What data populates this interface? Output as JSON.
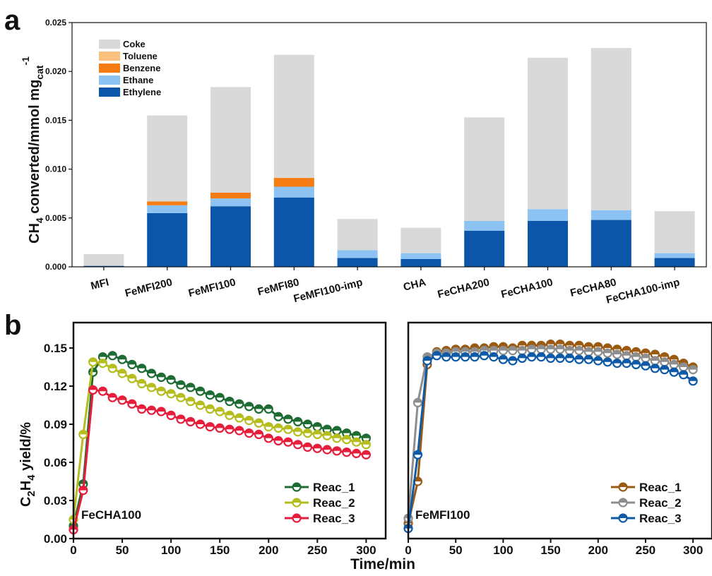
{
  "panels": {
    "a": "a",
    "b": "b"
  },
  "chart_data": [
    {
      "type": "bar",
      "stacked": true,
      "categories": [
        "MFI",
        "FeMFI200",
        "FeMFI100",
        "FeMFI80",
        "FeMFI100-imp",
        "CHA",
        "FeCHA200",
        "FeCHA100",
        "FeCHA80",
        "FeCHA100-imp"
      ],
      "ylabel_main": "CH",
      "ylabel_sub": "4",
      "ylabel_rest": " converted/mmol mg",
      "ylabel_unit_sub": "cat",
      "ylabel_unit_sup": "-1",
      "ylim": [
        0,
        0.025
      ],
      "yticks": [
        "0.000",
        "0.005",
        "0.010",
        "0.015",
        "0.020",
        "0.025"
      ],
      "ytick_values": [
        0,
        0.005,
        0.01,
        0.015,
        0.02,
        0.025
      ],
      "legend_position": "top-left",
      "series": [
        {
          "name": "Ethylene",
          "color": "#0b56a8",
          "values": [
            0.0001,
            0.0055,
            0.0062,
            0.0071,
            0.0009,
            0.0008,
            0.0037,
            0.0047,
            0.0048,
            0.0009
          ]
        },
        {
          "name": "Ethane",
          "color": "#8cc3f2",
          "values": [
            0.0,
            0.0008,
            0.0008,
            0.0011,
            0.0008,
            0.0006,
            0.001,
            0.0012,
            0.001,
            0.0005
          ]
        },
        {
          "name": "Benzene",
          "color": "#f47c12",
          "values": [
            0.0,
            0.0004,
            0.0006,
            0.0009,
            0.0,
            0.0,
            0.0,
            0.0,
            0.0,
            0.0
          ]
        },
        {
          "name": "Toluene",
          "color": "#f9c07e",
          "values": [
            0.0,
            0.0,
            0.0,
            0.0,
            0.0,
            0.0,
            0.0,
            0.0,
            0.0,
            0.0
          ]
        },
        {
          "name": "Coke",
          "color": "#d9d9d9",
          "values": [
            0.0012,
            0.0088,
            0.0108,
            0.0126,
            0.0032,
            0.0026,
            0.0106,
            0.0155,
            0.0166,
            0.0043
          ]
        }
      ]
    },
    {
      "type": "line",
      "title": "FeCHA100",
      "ylabel_main": "C",
      "ylabel_sub1": "2",
      "ylabel_mid": "H",
      "ylabel_sub2": "4",
      "ylabel_rest": " yield/%",
      "ylim": [
        0,
        0.17
      ],
      "yticks": [
        "0.00",
        "0.03",
        "0.06",
        "0.09",
        "0.12",
        "0.15"
      ],
      "ytick_values": [
        0,
        0.03,
        0.06,
        0.09,
        0.12,
        0.15
      ],
      "xlim": [
        0,
        320
      ],
      "xticks": [
        "0",
        "50",
        "100",
        "150",
        "200",
        "250",
        "300"
      ],
      "xtick_values": [
        0,
        50,
        100,
        150,
        200,
        250,
        300
      ],
      "legend_position": "bottom-right",
      "x": [
        0,
        10,
        20,
        30,
        40,
        50,
        60,
        70,
        80,
        90,
        100,
        110,
        120,
        130,
        140,
        150,
        160,
        170,
        180,
        190,
        200,
        210,
        220,
        230,
        240,
        250,
        260,
        270,
        280,
        290,
        300
      ],
      "series": [
        {
          "name": "Reac_1",
          "color": "#1e6b33",
          "values": [
            0.01,
            0.043,
            0.131,
            0.143,
            0.144,
            0.141,
            0.137,
            0.134,
            0.13,
            0.127,
            0.125,
            0.121,
            0.119,
            0.116,
            0.113,
            0.111,
            0.108,
            0.106,
            0.104,
            0.102,
            0.102,
            0.096,
            0.094,
            0.092,
            0.09,
            0.088,
            0.086,
            0.085,
            0.083,
            0.081,
            0.079
          ]
        },
        {
          "name": "Reac_2",
          "color": "#b5bd1f",
          "values": [
            0.015,
            0.082,
            0.139,
            0.138,
            0.134,
            0.13,
            0.126,
            0.122,
            0.119,
            0.116,
            0.114,
            0.111,
            0.108,
            0.105,
            0.102,
            0.1,
            0.097,
            0.095,
            0.093,
            0.091,
            0.088,
            0.087,
            0.086,
            0.084,
            0.083,
            0.082,
            0.081,
            0.079,
            0.078,
            0.076,
            0.074
          ]
        },
        {
          "name": "Reac_3",
          "color": "#e61e3c",
          "values": [
            0.007,
            0.038,
            0.117,
            0.116,
            0.111,
            0.109,
            0.106,
            0.102,
            0.101,
            0.1,
            0.097,
            0.094,
            0.092,
            0.09,
            0.088,
            0.087,
            0.086,
            0.085,
            0.083,
            0.082,
            0.079,
            0.077,
            0.076,
            0.074,
            0.072,
            0.071,
            0.07,
            0.069,
            0.068,
            0.067,
            0.066
          ]
        }
      ]
    },
    {
      "type": "line",
      "title": "FeMFI100",
      "xlabel": "Time/min",
      "ylim": [
        0,
        0.17
      ],
      "xlim": [
        0,
        320
      ],
      "xticks": [
        "0",
        "50",
        "100",
        "150",
        "200",
        "250",
        "300"
      ],
      "xtick_values": [
        0,
        50,
        100,
        150,
        200,
        250,
        300
      ],
      "legend_position": "bottom-right",
      "x": [
        0,
        10,
        20,
        30,
        40,
        50,
        60,
        70,
        80,
        90,
        100,
        110,
        120,
        130,
        140,
        150,
        160,
        170,
        180,
        190,
        200,
        210,
        220,
        230,
        240,
        250,
        260,
        270,
        280,
        290,
        300
      ],
      "series": [
        {
          "name": "Reac_1",
          "color": "#9a5a12",
          "values": [
            0.012,
            0.045,
            0.137,
            0.147,
            0.148,
            0.149,
            0.149,
            0.15,
            0.15,
            0.151,
            0.151,
            0.15,
            0.152,
            0.152,
            0.152,
            0.153,
            0.153,
            0.152,
            0.152,
            0.151,
            0.151,
            0.15,
            0.149,
            0.148,
            0.147,
            0.146,
            0.145,
            0.143,
            0.141,
            0.138,
            0.135
          ]
        },
        {
          "name": "Reac_2",
          "color": "#8e8e8e",
          "values": [
            0.016,
            0.107,
            0.143,
            0.146,
            0.146,
            0.147,
            0.147,
            0.147,
            0.148,
            0.148,
            0.148,
            0.148,
            0.148,
            0.149,
            0.149,
            0.149,
            0.149,
            0.148,
            0.148,
            0.147,
            0.147,
            0.146,
            0.145,
            0.144,
            0.143,
            0.142,
            0.14,
            0.139,
            0.137,
            0.135,
            0.133
          ]
        },
        {
          "name": "Reac_3",
          "color": "#0e5aa6",
          "values": [
            0.008,
            0.066,
            0.14,
            0.144,
            0.143,
            0.143,
            0.143,
            0.143,
            0.144,
            0.143,
            0.141,
            0.14,
            0.142,
            0.143,
            0.143,
            0.142,
            0.142,
            0.142,
            0.141,
            0.141,
            0.14,
            0.139,
            0.138,
            0.138,
            0.137,
            0.136,
            0.134,
            0.133,
            0.131,
            0.129,
            0.124
          ]
        }
      ]
    }
  ]
}
